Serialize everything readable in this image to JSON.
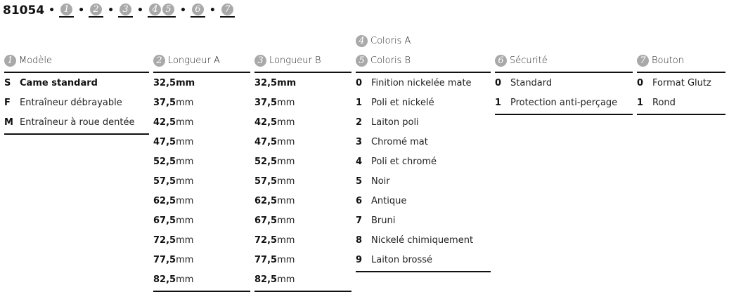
{
  "title": {
    "code": "81054",
    "sep": "•",
    "slots": [
      [
        "1"
      ],
      [
        "2"
      ],
      [
        "3"
      ],
      [
        "4",
        "5"
      ],
      [
        "6"
      ],
      [
        "7"
      ]
    ]
  },
  "columns": [
    {
      "badges": [
        "1"
      ],
      "label": "Modèle",
      "rows": [
        {
          "code": "S",
          "text": "Came standard",
          "selected": true
        },
        {
          "code": "F",
          "text": "Entraîneur débrayable"
        },
        {
          "code": "M",
          "text": "Entraîneur à roue dentée"
        }
      ]
    },
    {
      "badges": [
        "2"
      ],
      "label": "Longueur A",
      "unit": "mm",
      "rows": [
        "32,5",
        "37,5",
        "42,5",
        "47,5",
        "52,5",
        "57,5",
        "62,5",
        "67,5",
        "72,5",
        "77,5",
        "82,5"
      ]
    },
    {
      "badges": [
        "3"
      ],
      "label": "Longueur B",
      "unit": "mm",
      "rows": [
        "32,5",
        "37,5",
        "42,5",
        "47,5",
        "52,5",
        "57,5",
        "62,5",
        "67,5",
        "72,5",
        "77,5",
        "82,5"
      ]
    },
    {
      "badges": [
        "4",
        "5"
      ],
      "label_a": "Coloris A",
      "label": "Coloris B",
      "rows": [
        {
          "code": "0",
          "text": "Finition nickelée mate"
        },
        {
          "code": "1",
          "text": "Poli et nickelé"
        },
        {
          "code": "2",
          "text": "Laiton poli"
        },
        {
          "code": "3",
          "text": "Chromé mat"
        },
        {
          "code": "4",
          "text": "Poli et chromé"
        },
        {
          "code": "5",
          "text": "Noir"
        },
        {
          "code": "6",
          "text": "Antique"
        },
        {
          "code": "7",
          "text": "Bruni"
        },
        {
          "code": "8",
          "text": "Nickelé chimiquement"
        },
        {
          "code": "9",
          "text": "Laiton brossé"
        }
      ]
    },
    {
      "badges": [
        "6"
      ],
      "label": "Sécurité",
      "rows": [
        {
          "code": "0",
          "text": "Standard"
        },
        {
          "code": "1",
          "text": "Protection anti-perçage"
        }
      ]
    },
    {
      "badges": [
        "7"
      ],
      "label": "Bouton",
      "rows": [
        {
          "code": "0",
          "text": "Format Glutz"
        },
        {
          "code": "1",
          "text": "Rond"
        }
      ]
    }
  ],
  "colors": {
    "badge": "#a9a9a9",
    "text": "#111111"
  }
}
